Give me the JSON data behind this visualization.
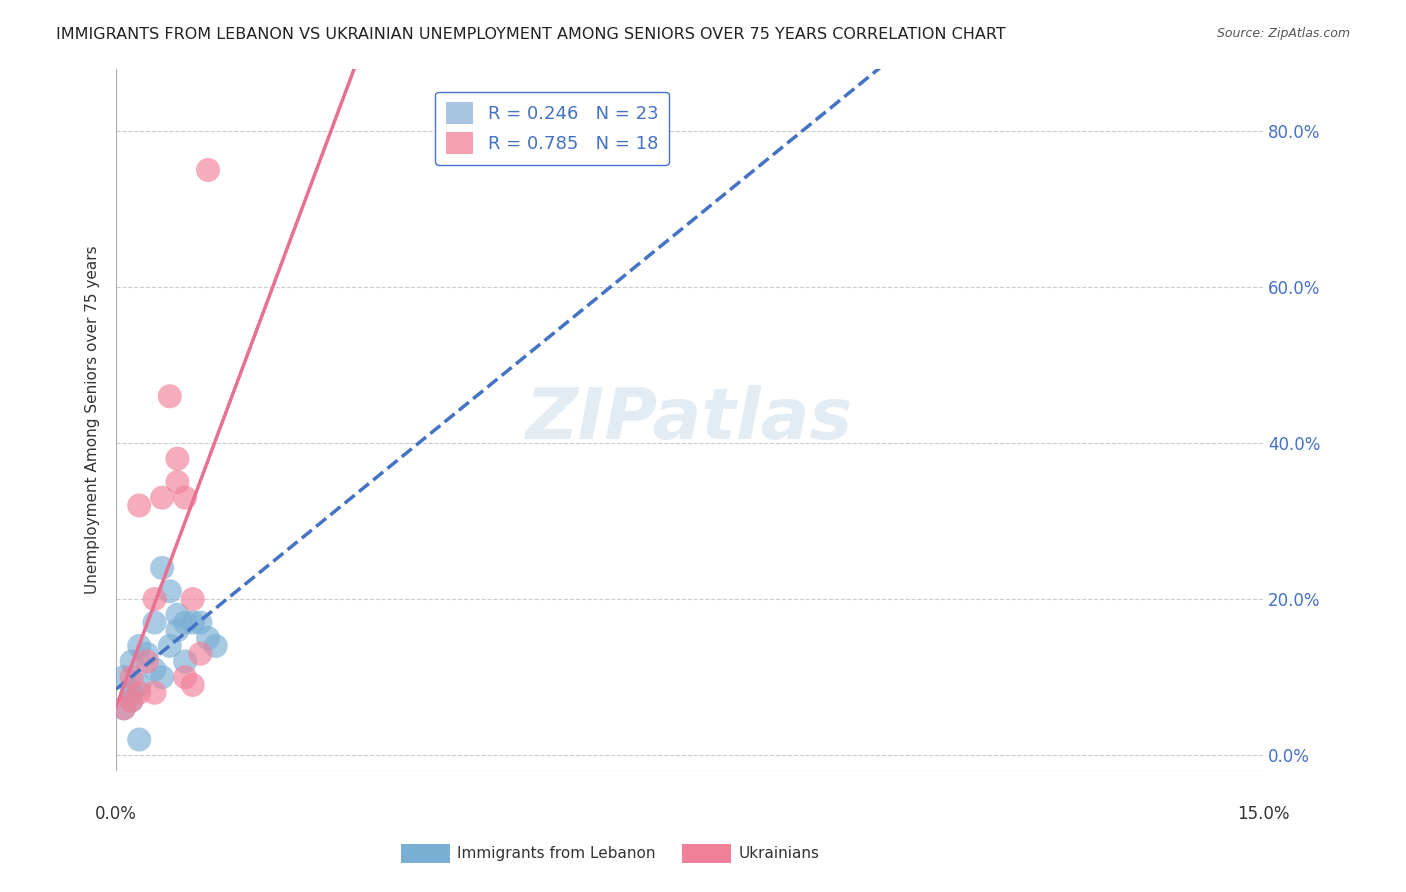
{
  "title": "IMMIGRANTS FROM LEBANON VS UKRAINIAN UNEMPLOYMENT AMONG SENIORS OVER 75 YEARS CORRELATION CHART",
  "source": "Source: ZipAtlas.com",
  "ylabel": "Unemployment Among Seniors over 75 years",
  "ytick_labels": [
    "0.0%",
    "20.0%",
    "40.0%",
    "60.0%",
    "80.0%"
  ],
  "ytick_values": [
    0.0,
    0.2,
    0.4,
    0.6,
    0.8
  ],
  "xlim": [
    0.0,
    0.15
  ],
  "ylim": [
    -0.02,
    0.88
  ],
  "legend_entries": [
    {
      "label": "R = 0.246   N = 23",
      "color": "#a8c4e0"
    },
    {
      "label": "R = 0.785   N = 18",
      "color": "#f4a0b0"
    }
  ],
  "lebanon_scatter": [
    [
      0.002,
      0.12
    ],
    [
      0.003,
      0.14
    ],
    [
      0.001,
      0.1
    ],
    [
      0.002,
      0.08
    ],
    [
      0.004,
      0.13
    ],
    [
      0.005,
      0.11
    ],
    [
      0.003,
      0.09
    ],
    [
      0.001,
      0.06
    ],
    [
      0.002,
      0.07
    ],
    [
      0.006,
      0.24
    ],
    [
      0.007,
      0.21
    ],
    [
      0.005,
      0.17
    ],
    [
      0.008,
      0.18
    ],
    [
      0.009,
      0.17
    ],
    [
      0.01,
      0.17
    ],
    [
      0.011,
      0.17
    ],
    [
      0.012,
      0.15
    ],
    [
      0.013,
      0.14
    ],
    [
      0.007,
      0.14
    ],
    [
      0.008,
      0.16
    ],
    [
      0.006,
      0.1
    ],
    [
      0.003,
      0.02
    ],
    [
      0.009,
      0.12
    ]
  ],
  "ukrainian_scatter": [
    [
      0.002,
      0.07
    ],
    [
      0.003,
      0.08
    ],
    [
      0.001,
      0.06
    ],
    [
      0.002,
      0.1
    ],
    [
      0.003,
      0.32
    ],
    [
      0.005,
      0.2
    ],
    [
      0.004,
      0.12
    ],
    [
      0.005,
      0.08
    ],
    [
      0.006,
      0.33
    ],
    [
      0.007,
      0.46
    ],
    [
      0.008,
      0.38
    ],
    [
      0.008,
      0.35
    ],
    [
      0.009,
      0.33
    ],
    [
      0.01,
      0.2
    ],
    [
      0.011,
      0.13
    ],
    [
      0.009,
      0.1
    ],
    [
      0.01,
      0.09
    ],
    [
      0.012,
      0.75
    ]
  ],
  "scatter_blue": "#7aafd4",
  "scatter_pink": "#f08098",
  "line_blue": "#4472c4",
  "line_pink": "#e87090",
  "watermark": "ZIPatlas",
  "title_fontsize": 11.5,
  "source_fontsize": 9,
  "bottom_legend": [
    {
      "label": "Immigrants from Lebanon",
      "color": "#a8c4e0"
    },
    {
      "label": "Ukrainians",
      "color": "#f4a0b0"
    }
  ]
}
